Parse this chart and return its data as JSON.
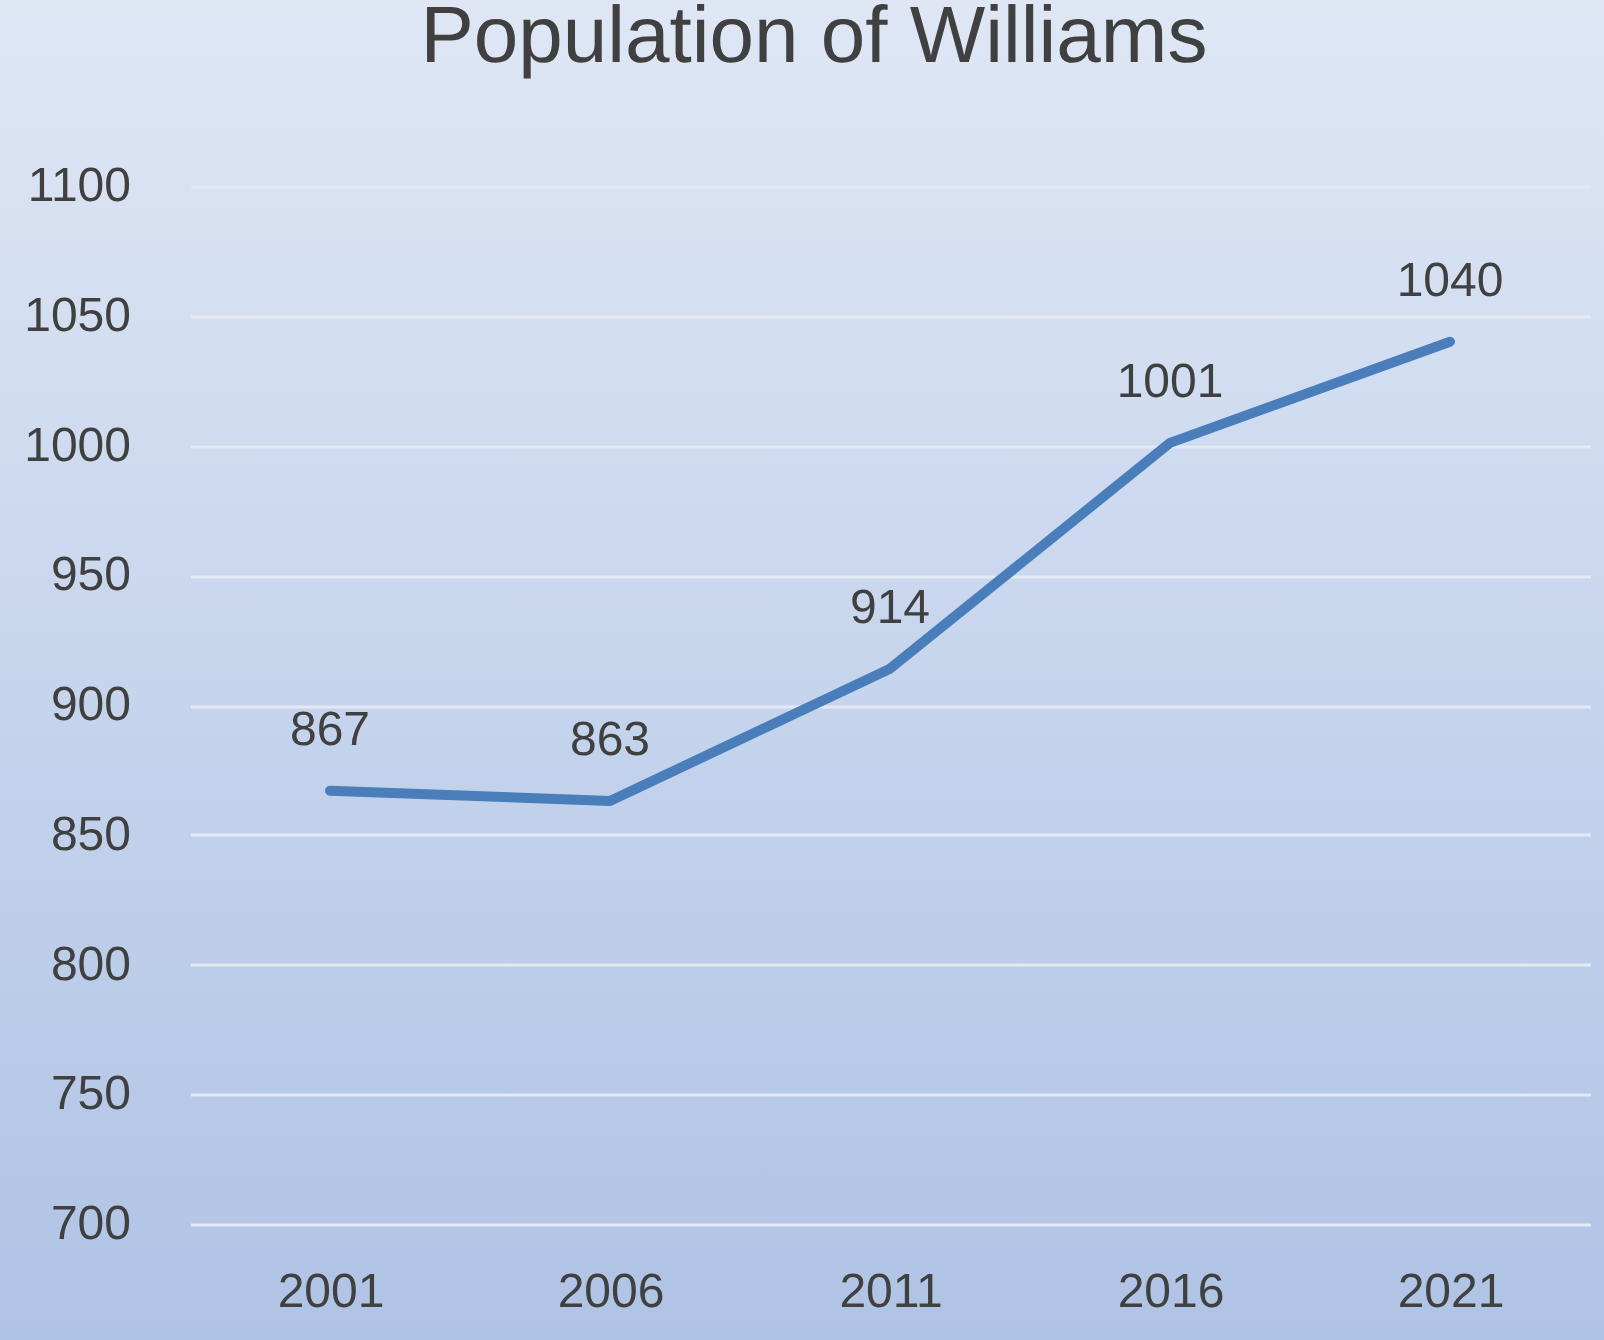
{
  "chart_data": {
    "type": "line",
    "title": "Population of Williams",
    "categories": [
      "2001",
      "2006",
      "2011",
      "2016",
      "2021"
    ],
    "series": [
      {
        "color": "#4a7ebb",
        "values": [
          867,
          863,
          914,
          1001,
          1040
        ]
      }
    ],
    "ylim": [
      700,
      1100
    ],
    "yticks": [
      700,
      750,
      800,
      850,
      900,
      950,
      1000,
      1050,
      1100
    ],
    "grid": "y",
    "data_labels": true,
    "marker": "none",
    "line_style": "solid"
  }
}
